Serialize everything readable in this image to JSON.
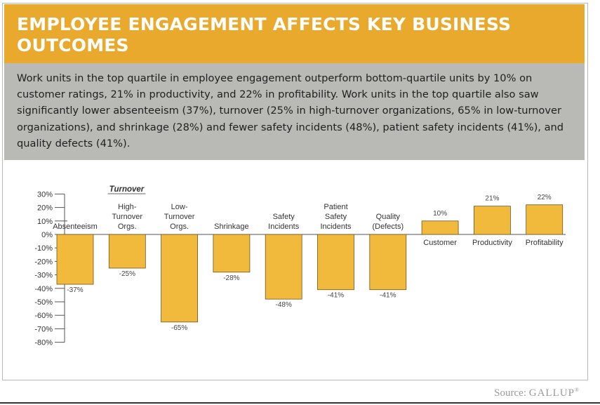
{
  "title": "EMPLOYEE ENGAGEMENT AFFECTS KEY BUSINESS OUTCOMES",
  "summary": "Work units in the top quartile in employee engagement outperform bottom-quartile units by 10% on customer ratings, 21% in productivity, and 22% in profitability. Work units in the top quartile also saw significantly lower absenteeism (37%), turnover (25% in high-turnover organizations, 65% in low-turnover organizations), and shrinkage (28%) and fewer safety incidents (48%), patient safety incidents (41%), and quality defects (41%).",
  "source_label": "Source:",
  "source_brand": "GALLUP",
  "source_mark": "®",
  "colors": {
    "header": "#e8a92c",
    "summary_bg": "#b9b9b6",
    "bar": "#f2ba3c",
    "bar_border": "#6b5520"
  },
  "chart_data": {
    "type": "bar",
    "categories": [
      "Absenteeism",
      "High-Turnover Orgs.",
      "Low-Turnover Orgs.",
      "Shrinkage",
      "Safety Incidents",
      "Patient Safety Incidents",
      "Quality (Defects)",
      "Customer",
      "Productivity",
      "Profitability"
    ],
    "category_lines": [
      [
        "Absenteeism"
      ],
      [
        "High-",
        "Turnover",
        "Orgs."
      ],
      [
        "Low-",
        "Turnover",
        "Orgs."
      ],
      [
        "Shrinkage"
      ],
      [
        "Safety",
        "Incidents"
      ],
      [
        "Patient",
        "Safety",
        "Incidents"
      ],
      [
        "Quality",
        "(Defects)"
      ],
      [
        "Customer"
      ],
      [
        "Productivity"
      ],
      [
        "Profitability"
      ]
    ],
    "values": [
      -37,
      -25,
      -65,
      -28,
      -48,
      -41,
      -41,
      10,
      21,
      22
    ],
    "value_labels": [
      "-37%",
      "-25%",
      "-65%",
      "-28%",
      "-48%",
      "-41%",
      "-41%",
      "10%",
      "21%",
      "22%"
    ],
    "group_label": "Turnover",
    "ylim": [
      -80,
      30
    ],
    "yticks": [
      30,
      20,
      10,
      0,
      -10,
      -20,
      -30,
      -40,
      -50,
      -60,
      -70,
      -80
    ],
    "ytick_labels": [
      "30%",
      "20%",
      "10%",
      "0%",
      "-10%",
      "-20%",
      "-30%",
      "-40%",
      "-50%",
      "-60%",
      "-70%",
      "-80%"
    ],
    "grid": false,
    "legend": "none"
  }
}
